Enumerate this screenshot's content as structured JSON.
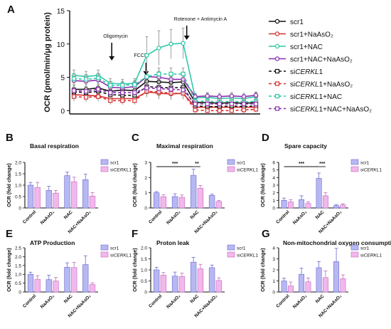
{
  "figure": {
    "colors": {
      "scr1": "#111111",
      "scr1_naaso2": "#d83131",
      "scr1_nac": "#2fc8a8",
      "scr1_nac_naaso2": "#8a2fb0",
      "bar_scr1": "#b7b7f2",
      "bar_scr1_edge": "#6a6ad0",
      "bar_sicerkl1": "#f2b7ec",
      "bar_sicerkl1_edge": "#c06ab8"
    },
    "annotations": {
      "oligomycin": "Oligomycin",
      "fccp": "FCCP",
      "rotenone": "Rotenone + Antimycin A",
      "sig_three": "***",
      "sig_two": "**"
    }
  },
  "chart_data": [
    {
      "panel": "A",
      "type": "line",
      "title": "",
      "xlabel": "",
      "ylabel": "OCR (pmol/min/μg protein)",
      "ylim": [
        -0.5,
        15
      ],
      "yticks": [
        0,
        5,
        10,
        15
      ],
      "x": [
        1,
        2,
        3,
        4,
        5,
        6,
        7,
        8,
        9,
        10,
        11,
        12,
        13,
        14,
        15,
        16
      ],
      "legend_position": "right",
      "series": [
        {
          "name": "scr1",
          "key": "scr1",
          "dashed": false,
          "values": [
            3.2,
            3.2,
            3.4,
            2.9,
            3.1,
            3.0,
            4.4,
            4.3,
            4.2,
            4.3,
            1.2,
            1.2,
            1.1,
            1.2,
            1.1,
            1.2
          ]
        },
        {
          "name": "scr1+NaAsO₂",
          "key": "scr1_naaso2",
          "dashed": false,
          "values": [
            2.4,
            2.3,
            2.2,
            1.8,
            1.8,
            1.8,
            2.8,
            2.6,
            2.5,
            2.6,
            0.5,
            0.5,
            0.5,
            0.5,
            0.5,
            0.5
          ]
        },
        {
          "name": "scr1+NAC",
          "key": "scr1_nac",
          "dashed": false,
          "values": [
            5.3,
            5.1,
            5.3,
            4.1,
            4.0,
            4.1,
            8.3,
            9.4,
            10.0,
            10.1,
            1.9,
            2.0,
            1.8,
            1.9,
            1.8,
            2.1
          ]
        },
        {
          "name": "scr1+NAC+NaAsO₂",
          "key": "scr1_nac_naaso2",
          "dashed": false,
          "values": [
            4.5,
            4.4,
            4.6,
            3.5,
            3.4,
            3.6,
            5.1,
            5.0,
            4.7,
            4.7,
            2.1,
            2.2,
            2.1,
            2.2,
            2.1,
            2.3
          ]
        },
        {
          "name": "siCERKL1",
          "key": "scr1",
          "dashed": true,
          "values": [
            2.8,
            2.7,
            2.9,
            2.4,
            2.3,
            2.3,
            3.6,
            3.5,
            3.4,
            3.5,
            0.7,
            0.6,
            0.6,
            0.7,
            0.6,
            0.7
          ]
        },
        {
          "name": "siCERKL1+NaAsO₂",
          "key": "scr1_naaso2",
          "dashed": true,
          "values": [
            2.1,
            2.0,
            2.1,
            1.5,
            1.5,
            1.5,
            2.9,
            2.8,
            2.6,
            2.6,
            0.1,
            0.0,
            0.0,
            0.0,
            0.1,
            0.2
          ]
        },
        {
          "name": "siCERKL1+NAC",
          "key": "scr1_nac",
          "dashed": true,
          "values": [
            4.8,
            4.7,
            4.9,
            3.8,
            3.8,
            3.9,
            5.1,
            5.5,
            5.5,
            5.5,
            1.4,
            1.4,
            1.3,
            1.4,
            1.3,
            1.4
          ]
        },
        {
          "name": "siCERKL1+NAC+NaAsO₂",
          "key": "scr1_nac_naaso2",
          "dashed": true,
          "values": [
            3.0,
            2.9,
            3.2,
            2.7,
            2.7,
            2.7,
            3.4,
            3.3,
            3.2,
            3.1,
            1.0,
            1.0,
            1.0,
            1.0,
            1.0,
            1.0
          ]
        }
      ],
      "error": [
        0.7,
        0.7,
        0.7,
        0.6,
        0.6,
        0.6,
        0.8,
        0.9,
        0.9,
        0.9,
        0.5,
        0.5,
        0.5,
        0.5,
        0.5,
        0.5
      ],
      "error_scr1_nac": [
        0.8,
        0.8,
        0.8,
        0.7,
        0.7,
        0.7,
        2.8,
        2.6,
        2.2,
        2.3,
        0.6,
        0.6,
        0.6,
        0.6,
        0.6,
        0.6
      ],
      "injections": [
        {
          "key": "oligomycin",
          "at": 3.5
        },
        {
          "key": "fccp",
          "at": 6.5
        },
        {
          "key": "rotenone",
          "at": 10.5
        }
      ]
    },
    {
      "panel": "B",
      "type": "bar",
      "title": "Basal respiration",
      "xlabel": "",
      "ylabel": "OCR (fold change)",
      "ylim": [
        0,
        2
      ],
      "yticks": [
        0,
        0.5,
        1.0,
        1.5,
        2.0
      ],
      "categories": [
        "Control",
        "NaAsO₂",
        "NAC",
        "NAC+NaAsO₂"
      ],
      "series": [
        {
          "name": "scr1",
          "values": [
            1.0,
            0.77,
            1.42,
            1.24
          ],
          "errors": [
            0.12,
            0.18,
            0.15,
            0.24
          ]
        },
        {
          "name": "siCERKL1",
          "values": [
            0.9,
            0.65,
            1.15,
            0.52
          ],
          "errors": [
            0.22,
            0.12,
            0.2,
            0.15
          ]
        }
      ]
    },
    {
      "panel": "C",
      "type": "bar",
      "title": "Maximal respiration",
      "xlabel": "",
      "ylabel": "OCR (fold change)",
      "ylim": [
        0,
        3
      ],
      "yticks": [
        0,
        1,
        2,
        3
      ],
      "categories": [
        "Control",
        "NaAsO₂",
        "NAC",
        "NAC+NaAsO₂"
      ],
      "series": [
        {
          "name": "scr1",
          "values": [
            1.0,
            0.75,
            2.15,
            0.82
          ],
          "errors": [
            0.08,
            0.18,
            0.4,
            0.08
          ]
        },
        {
          "name": "siCERKL1",
          "values": [
            0.74,
            0.7,
            1.3,
            0.42
          ],
          "errors": [
            0.12,
            0.15,
            0.18,
            0.08
          ]
        }
      ],
      "significance": [
        {
          "label": "***",
          "from": "Control",
          "to": "NAC"
        },
        {
          "label": "**",
          "at": "NAC"
        }
      ]
    },
    {
      "panel": "D",
      "type": "bar",
      "title": "Spare capacity",
      "xlabel": "",
      "ylabel": "OCR (fold change)",
      "ylim": [
        0,
        6
      ],
      "yticks": [
        0,
        1,
        2,
        3,
        4,
        5,
        6
      ],
      "categories": [
        "Control",
        "NaAsO₂",
        "NAC",
        "NAC+NaAsO₂"
      ],
      "series": [
        {
          "name": "scr1",
          "values": [
            1.0,
            1.1,
            3.9,
            0.3
          ],
          "errors": [
            0.3,
            0.5,
            0.7,
            0.15
          ]
        },
        {
          "name": "siCERKL1",
          "values": [
            0.8,
            0.6,
            1.6,
            0.4
          ],
          "errors": [
            0.3,
            0.2,
            0.4,
            0.15
          ]
        }
      ],
      "significance": [
        {
          "label": "***",
          "from": "Control",
          "to": "NAC"
        },
        {
          "label": "***",
          "at": "NAC"
        }
      ]
    },
    {
      "panel": "E",
      "type": "bar",
      "title": "ATP Production",
      "xlabel": "",
      "ylabel": "OCR (fold change)",
      "ylim": [
        0,
        2.5
      ],
      "yticks": [
        0,
        0.5,
        1.0,
        1.5,
        2.0,
        2.5
      ],
      "categories": [
        "Control",
        "NaAsO₂",
        "NAC",
        "NAC+NaAsO₂"
      ],
      "series": [
        {
          "name": "scr1",
          "values": [
            1.0,
            0.7,
            1.4,
            1.55
          ],
          "errors": [
            0.12,
            0.25,
            0.25,
            0.5
          ]
        },
        {
          "name": "siCERKL1",
          "values": [
            0.72,
            0.62,
            1.38,
            0.42
          ],
          "errors": [
            0.2,
            0.2,
            0.3,
            0.1
          ]
        }
      ]
    },
    {
      "panel": "F",
      "type": "bar",
      "title": "Proton leak",
      "xlabel": "",
      "ylabel": "OCR (fold change)",
      "ylim": [
        0,
        2
      ],
      "yticks": [
        0,
        0.5,
        1.0,
        1.5,
        2.0
      ],
      "categories": [
        "Control",
        "NaAsO₂",
        "NAC",
        "NAC+NaAsO₂"
      ],
      "series": [
        {
          "name": "scr1",
          "values": [
            1.0,
            0.72,
            1.35,
            1.1
          ],
          "errors": [
            0.12,
            0.18,
            0.22,
            0.12
          ]
        },
        {
          "name": "siCERKL1",
          "values": [
            0.76,
            0.7,
            1.05,
            0.52
          ],
          "errors": [
            0.12,
            0.15,
            0.2,
            0.12
          ]
        }
      ]
    },
    {
      "panel": "G",
      "type": "bar",
      "title": "Non-mitochondrial oxygen consumption",
      "xlabel": "",
      "ylabel": "OCR (fold change)",
      "ylim": [
        0,
        4
      ],
      "yticks": [
        0,
        1,
        2,
        3,
        4
      ],
      "categories": [
        "Control",
        "NaAsO₂",
        "NAC",
        "NAC+NaAsO₂"
      ],
      "series": [
        {
          "name": "scr1",
          "values": [
            1.0,
            1.6,
            2.2,
            2.75
          ],
          "errors": [
            0.25,
            0.55,
            0.55,
            1.2
          ]
        },
        {
          "name": "siCERKL1",
          "values": [
            0.55,
            0.92,
            1.3,
            1.2
          ],
          "errors": [
            0.35,
            0.35,
            0.6,
            0.35
          ]
        }
      ]
    }
  ]
}
